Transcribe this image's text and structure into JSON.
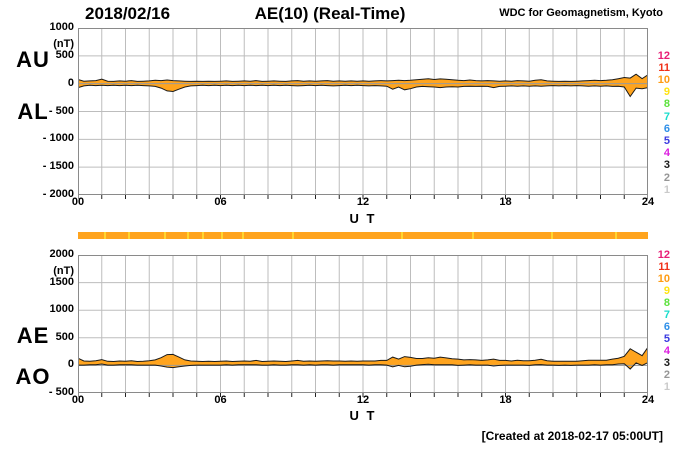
{
  "header": {
    "date": "2018/02/16",
    "title": "AE(10) (Real-Time)",
    "credit": "WDC for Geomagnetism, Kyoto"
  },
  "footer": {
    "created": "[Created at 2018-02-17 05:00UT]"
  },
  "station_scale": {
    "description": "number of contributing stations color scale",
    "items": [
      {
        "label": "12",
        "color": "#e81d76"
      },
      {
        "label": "11",
        "color": "#f03118"
      },
      {
        "label": "10",
        "color": "#ff9c14"
      },
      {
        "label": "9",
        "color": "#ffe414"
      },
      {
        "label": "8",
        "color": "#5ce23c"
      },
      {
        "label": "7",
        "color": "#1addcc"
      },
      {
        "label": "6",
        "color": "#2e8fe8"
      },
      {
        "label": "5",
        "color": "#3a3ae0"
      },
      {
        "label": "4",
        "color": "#dc1ee0"
      },
      {
        "label": "3",
        "color": "#1a1a1a"
      },
      {
        "label": "2",
        "color": "#969696"
      },
      {
        "label": "1",
        "color": "#cacaca"
      }
    ]
  },
  "availability_bar": {
    "color": "#ffa41e",
    "separator_color": "#ffd530",
    "separator_hours": [
      1.1,
      2.1,
      3.6,
      4.6,
      5.2,
      6.0,
      6.9,
      9.0,
      13.6,
      16.6,
      19.9,
      22.6
    ]
  },
  "chart_data": [
    {
      "type": "area",
      "panel": "top",
      "panel_label_left": [
        "AU",
        "AL"
      ],
      "unit": "(nT)",
      "xlabel": "U T",
      "xlim": [
        0,
        24
      ],
      "ylim": [
        -2000,
        1000
      ],
      "yticks": [
        1000,
        500,
        0,
        -500,
        -1000,
        -1500,
        -2000
      ],
      "ytick_labels": [
        "1000",
        "500",
        "0",
        "- 500",
        "- 1000",
        "- 1500",
        "- 2000"
      ],
      "xticks": [
        0,
        6,
        12,
        18,
        24
      ],
      "xtick_labels": [
        "00",
        "06",
        "12",
        "18",
        "24"
      ],
      "grid": true,
      "fill_color": "#ffa41e",
      "line_color": "#1a1a1a",
      "x": {
        "start": 0,
        "step": 0.25,
        "end": 24
      },
      "series": [
        {
          "name": "AU",
          "values": [
            75,
            45,
            50,
            55,
            80,
            45,
            40,
            50,
            45,
            55,
            40,
            45,
            50,
            60,
            55,
            65,
            55,
            50,
            45,
            40,
            45,
            40,
            45,
            40,
            45,
            50,
            40,
            45,
            50,
            45,
            55,
            40,
            45,
            50,
            45,
            40,
            50,
            55,
            45,
            50,
            45,
            50,
            55,
            45,
            50,
            45,
            50,
            45,
            50,
            45,
            50,
            55,
            50,
            55,
            60,
            55,
            60,
            70,
            80,
            90,
            75,
            85,
            80,
            70,
            60,
            55,
            65,
            55,
            50,
            55,
            50,
            45,
            50,
            45,
            55,
            50,
            45,
            60,
            70,
            50,
            45,
            40,
            45,
            40,
            45,
            50,
            55,
            60,
            55,
            60,
            70,
            90,
            110,
            100,
            170,
            90,
            160
          ]
        },
        {
          "name": "AL",
          "values": [
            -70,
            -40,
            -30,
            -35,
            -30,
            -35,
            -30,
            -35,
            -30,
            -35,
            -30,
            -35,
            -40,
            -50,
            -80,
            -130,
            -140,
            -100,
            -60,
            -40,
            -35,
            -30,
            -35,
            -30,
            -35,
            -30,
            -35,
            -30,
            -35,
            -30,
            -35,
            -30,
            -35,
            -30,
            -35,
            -30,
            -35,
            -40,
            -35,
            -30,
            -35,
            -30,
            -35,
            -40,
            -35,
            -30,
            -35,
            -30,
            -35,
            -40,
            -35,
            -40,
            -45,
            -100,
            -60,
            -110,
            -90,
            -60,
            -50,
            -55,
            -60,
            -70,
            -60,
            -55,
            -60,
            -50,
            -45,
            -50,
            -45,
            -50,
            -70,
            -50,
            -45,
            -40,
            -45,
            -40,
            -45,
            -40,
            -45,
            -40,
            -35,
            -40,
            -35,
            -40,
            -35,
            -40,
            -45,
            -40,
            -45,
            -40,
            -50,
            -45,
            -60,
            -230,
            -80,
            -90,
            -70
          ]
        }
      ]
    },
    {
      "type": "area",
      "panel": "bottom",
      "panel_label_left": [
        "AE",
        "AO"
      ],
      "unit": "(nT)",
      "xlabel": "U T",
      "xlim": [
        0,
        24
      ],
      "ylim": [
        -500,
        2000
      ],
      "yticks": [
        2000,
        1500,
        1000,
        500,
        0,
        -500
      ],
      "ytick_labels": [
        "2000",
        "1500",
        "1000",
        "500",
        "0",
        "- 500"
      ],
      "xticks": [
        0,
        6,
        12,
        18,
        24
      ],
      "xtick_labels": [
        "00",
        "06",
        "12",
        "18",
        "24"
      ],
      "grid": true,
      "fill_color": "#ffa41e",
      "line_color": "#1a1a1a",
      "x": {
        "start": 0,
        "step": 0.25,
        "end": 24
      },
      "series": [
        {
          "name": "AE",
          "values": [
            130,
            80,
            75,
            85,
            105,
            75,
            70,
            80,
            75,
            85,
            70,
            75,
            85,
            100,
            140,
            195,
            200,
            150,
            100,
            80,
            75,
            70,
            75,
            70,
            75,
            80,
            70,
            75,
            80,
            75,
            90,
            70,
            75,
            80,
            75,
            70,
            80,
            90,
            75,
            80,
            75,
            80,
            85,
            80,
            80,
            75,
            80,
            75,
            80,
            80,
            80,
            90,
            90,
            150,
            115,
            160,
            145,
            125,
            125,
            140,
            130,
            150,
            135,
            120,
            115,
            100,
            105,
            100,
            90,
            100,
            115,
            90,
            90,
            80,
            95,
            85,
            85,
            95,
            110,
            85,
            75,
            75,
            75,
            75,
            75,
            85,
            95,
            95,
            95,
            95,
            115,
            130,
            165,
            300,
            240,
            175,
            330
          ]
        },
        {
          "name": "AO",
          "values": [
            5,
            5,
            10,
            10,
            25,
            5,
            5,
            10,
            10,
            10,
            5,
            5,
            5,
            5,
            -10,
            -30,
            -40,
            -25,
            -10,
            0,
            5,
            5,
            5,
            5,
            5,
            10,
            5,
            10,
            10,
            10,
            10,
            5,
            5,
            10,
            5,
            5,
            10,
            10,
            5,
            10,
            5,
            10,
            10,
            5,
            10,
            10,
            10,
            10,
            10,
            5,
            10,
            10,
            5,
            -25,
            0,
            -25,
            -15,
            5,
            15,
            20,
            10,
            10,
            10,
            10,
            0,
            5,
            10,
            5,
            5,
            5,
            -10,
            0,
            5,
            5,
            5,
            5,
            0,
            10,
            15,
            5,
            5,
            0,
            5,
            0,
            5,
            5,
            5,
            10,
            5,
            10,
            10,
            25,
            30,
            -65,
            45,
            0,
            50
          ]
        }
      ]
    }
  ]
}
